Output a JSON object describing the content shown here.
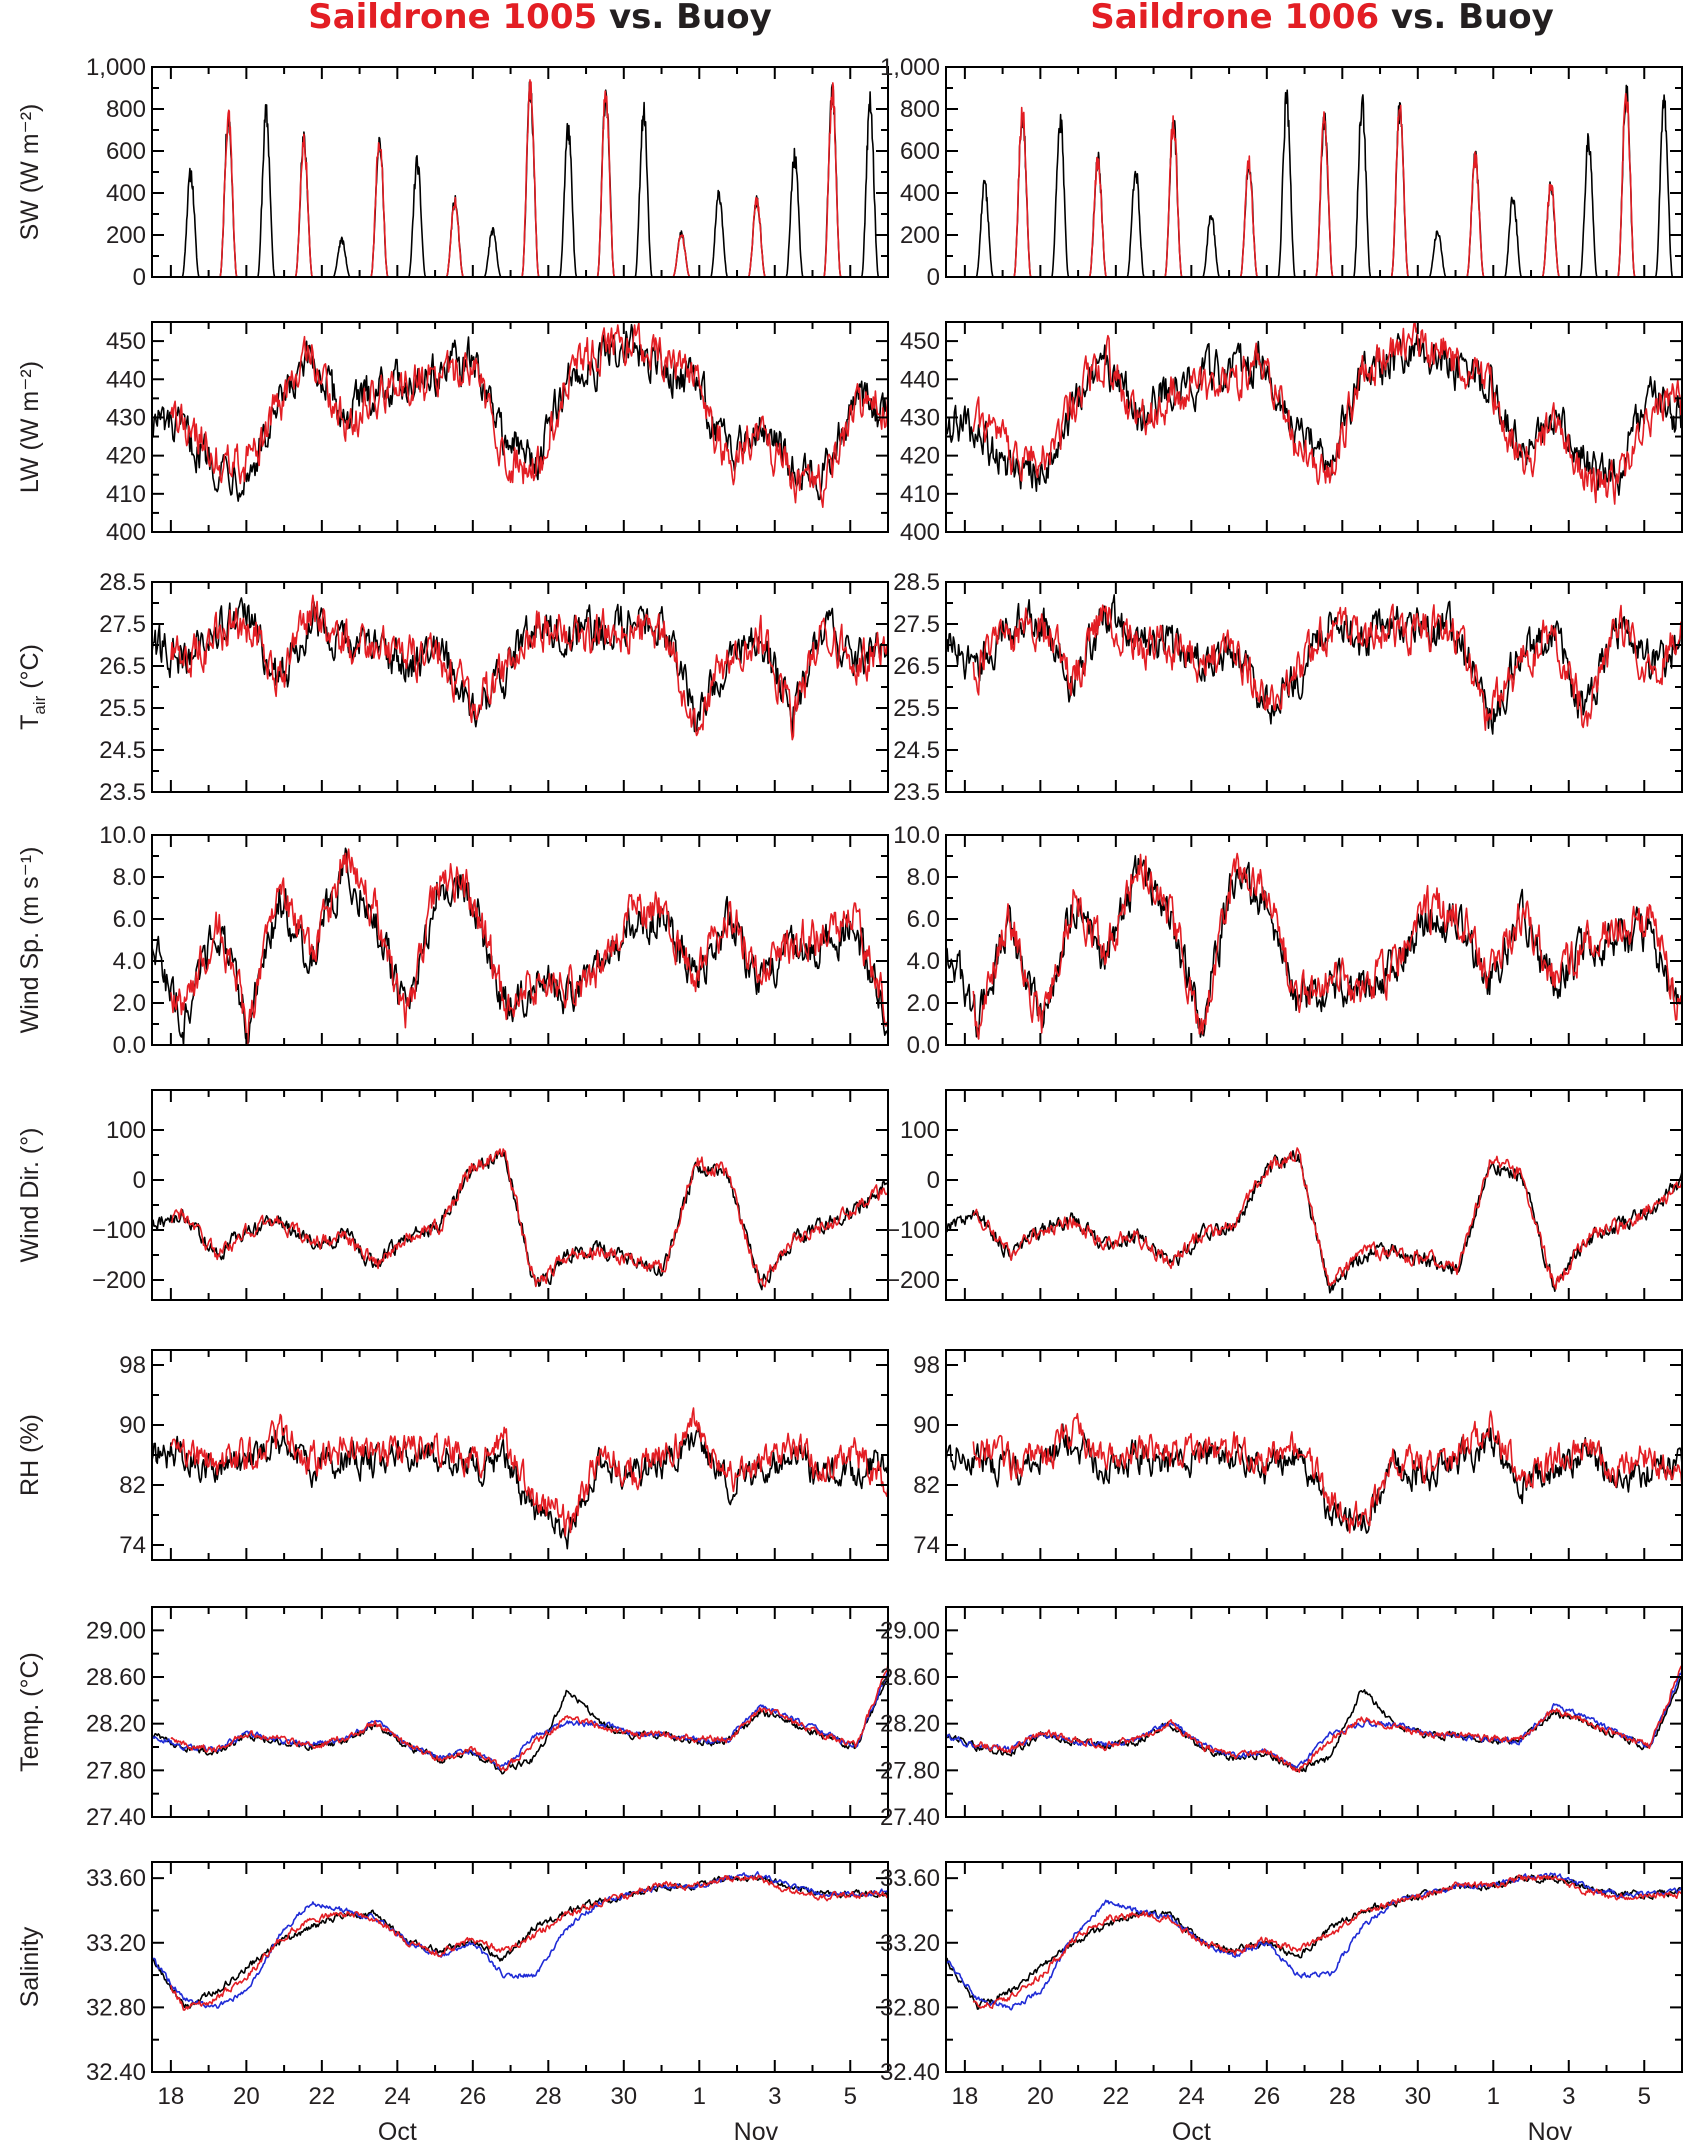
{
  "titles": [
    {
      "platform": "Saildrone 1005",
      "suffix": " vs. Buoy"
    },
    {
      "platform": "Saildrone 1006",
      "suffix": " vs. Buoy"
    }
  ],
  "colors": {
    "buoy": "#000000",
    "saildrone": "#e31e24",
    "blue": "#1f2bd6",
    "title_red": "#e31e24",
    "title_black": "#231f20"
  },
  "x_axis": {
    "day_range": [
      17.5,
      37.0
    ],
    "ticks": [
      {
        "day": 18,
        "label": "18"
      },
      {
        "day": 20,
        "label": "20"
      },
      {
        "day": 22,
        "label": "22"
      },
      {
        "day": 24,
        "label": "24"
      },
      {
        "day": 26,
        "label": "26"
      },
      {
        "day": 28,
        "label": "28"
      },
      {
        "day": 30,
        "label": "30"
      },
      {
        "day": 32,
        "label": "1"
      },
      {
        "day": 34,
        "label": "3"
      },
      {
        "day": 36,
        "label": "5"
      }
    ],
    "month_labels": [
      {
        "day": 24.0,
        "label": "Oct"
      },
      {
        "day": 33.5,
        "label": "Nov"
      }
    ]
  },
  "chart_data": [
    {
      "type": "line",
      "id": "sw",
      "ylabel": "SW (W m⁻²)",
      "ylim": [
        0,
        1000
      ],
      "yticks": [
        {
          "v": 0,
          "l": "0"
        },
        {
          "v": 200,
          "l": "200"
        },
        {
          "v": 400,
          "l": "400"
        },
        {
          "v": 600,
          "l": "600"
        },
        {
          "v": 800,
          "l": "800"
        },
        {
          "v": 1000,
          "l": "1,000"
        }
      ],
      "peaks_sd1005": [
        0,
        560,
        820,
        880,
        700,
        200,
        700,
        620,
        390,
        250,
        960,
        800,
        950,
        900,
        220,
        450,
        390,
        650,
        940,
        930,
        80,
        920
      ],
      "peaks_sd1006": [
        0,
        500,
        840,
        850,
        600,
        580,
        800,
        330,
        580,
        960,
        800,
        950,
        860,
        250,
        610,
        430,
        480,
        740,
        940,
        940,
        100,
        830
      ]
    },
    {
      "type": "line",
      "id": "lw",
      "ylabel": "LW (W m⁻²)",
      "ylim": [
        400,
        455
      ],
      "yticks": [
        {
          "v": 400,
          "l": "400"
        },
        {
          "v": 410,
          "l": "410"
        },
        {
          "v": 420,
          "l": "420"
        },
        {
          "v": 430,
          "l": "430"
        },
        {
          "v": 440,
          "l": "440"
        },
        {
          "v": 450,
          "l": "450"
        }
      ],
      "daily_buoy": [
        430,
        425,
        418,
        415,
        432,
        445,
        430,
        438,
        440,
        442,
        445,
        425,
        418,
        440,
        445,
        448,
        442,
        440,
        420,
        430,
        418,
        415,
        435,
        430
      ],
      "daily_sd": [
        432,
        428,
        420,
        418,
        434,
        446,
        428,
        436,
        438,
        440,
        444,
        420,
        415,
        442,
        447,
        450,
        444,
        438,
        418,
        428,
        414,
        412,
        432,
        434
      ]
    },
    {
      "type": "line",
      "id": "tair",
      "ylabel": "T",
      "ylabel_sub": "air",
      "ylabel_suffix": " (°C)",
      "ylim": [
        23.5,
        28.5
      ],
      "yticks": [
        {
          "v": 23.5,
          "l": "23.5"
        },
        {
          "v": 24.5,
          "l": "24.5"
        },
        {
          "v": 25.5,
          "l": "25.5"
        },
        {
          "v": 26.5,
          "l": "26.5"
        },
        {
          "v": 27.5,
          "l": "27.5"
        },
        {
          "v": 28.5,
          "l": "28.5"
        }
      ],
      "daily_buoy": [
        27.0,
        26.6,
        27.4,
        27.6,
        26.0,
        27.8,
        27.1,
        27.0,
        26.6,
        26.9,
        25.5,
        26.2,
        27.6,
        27.2,
        27.4,
        27.5,
        27.3,
        25.3,
        26.8,
        27.2,
        25.3,
        27.4,
        26.5,
        27.0
      ],
      "daily_sd": [
        27.1,
        26.5,
        27.3,
        27.5,
        26.1,
        27.9,
        27.0,
        26.9,
        26.7,
        26.8,
        25.6,
        26.3,
        27.5,
        27.1,
        27.3,
        27.4,
        27.2,
        25.2,
        26.7,
        27.3,
        25.2,
        27.5,
        26.4,
        27.2
      ]
    },
    {
      "type": "line",
      "id": "wind_speed",
      "ylabel": "Wind Sp. (m s⁻¹)",
      "ylim": [
        0,
        10
      ],
      "yticks": [
        {
          "v": 0,
          "l": "0.0"
        },
        {
          "v": 2,
          "l": "2.0"
        },
        {
          "v": 4,
          "l": "4.0"
        },
        {
          "v": 6,
          "l": "6.0"
        },
        {
          "v": 8,
          "l": "8.0"
        },
        {
          "v": 10,
          "l": "10.0"
        }
      ],
      "daily_buoy": [
        5.0,
        1.0,
        6.0,
        0.8,
        7.0,
        4.0,
        8.5,
        6.0,
        1.0,
        8.0,
        7.0,
        2.0,
        3.0,
        2.5,
        3.5,
        6.0,
        6.0,
        3.0,
        6.0,
        3.0,
        4.5,
        5.0,
        5.5,
        1.0
      ],
      "daily_sd": [
        5.5,
        1.2,
        6.2,
        0.9,
        7.2,
        4.2,
        8.8,
        6.3,
        1.2,
        8.2,
        7.3,
        2.2,
        3.1,
        2.6,
        3.8,
        6.5,
        6.3,
        3.2,
        6.4,
        3.2,
        4.8,
        5.2,
        5.8,
        1.5
      ]
    },
    {
      "type": "line",
      "id": "wind_dir",
      "ylabel": "Wind Dir. (°)",
      "ylim": [
        -240,
        180
      ],
      "yticks": [
        {
          "v": -200,
          "l": "−200"
        },
        {
          "v": -100,
          "l": "−100"
        },
        {
          "v": 0,
          "l": "0"
        },
        {
          "v": 100,
          "l": "100"
        }
      ],
      "daily_buoy": [
        -90,
        -70,
        -150,
        -100,
        -80,
        -130,
        -110,
        -170,
        -110,
        -90,
        20,
        50,
        -220,
        -150,
        -140,
        -160,
        -180,
        30,
        10,
        -210,
        -120,
        -90,
        -60,
        0
      ],
      "daily_sd": [
        -92,
        -72,
        -148,
        -102,
        -82,
        -128,
        -112,
        -168,
        -108,
        -92,
        25,
        52,
        -215,
        -148,
        -142,
        -158,
        -182,
        40,
        12,
        -212,
        -118,
        -92,
        -58,
        -20
      ]
    },
    {
      "type": "line",
      "id": "rh",
      "ylabel": "RH (%)",
      "ylim": [
        72,
        100
      ],
      "yticks": [
        {
          "v": 74,
          "l": "74"
        },
        {
          "v": 82,
          "l": "82"
        },
        {
          "v": 90,
          "l": "90"
        },
        {
          "v": 98,
          "l": "98"
        }
      ],
      "daily_buoy": [
        86,
        86,
        84,
        85,
        88,
        84,
        86,
        85,
        86,
        86,
        84,
        86,
        78,
        76,
        85,
        83,
        85,
        88,
        82,
        84,
        86,
        83,
        84,
        85
      ],
      "daily_sd": [
        87,
        87,
        85,
        86,
        89,
        85,
        87,
        86,
        87,
        87,
        85,
        88,
        80,
        77,
        86,
        84,
        86,
        90,
        83,
        85,
        87,
        84,
        86,
        82
      ]
    },
    {
      "type": "line",
      "id": "temp",
      "ylabel": "Temp. (°C)",
      "ylim": [
        27.4,
        29.2
      ],
      "yticks": [
        {
          "v": 27.4,
          "l": "27.40"
        },
        {
          "v": 27.8,
          "l": "27.80"
        },
        {
          "v": 28.2,
          "l": "28.20"
        },
        {
          "v": 28.6,
          "l": "28.60"
        },
        {
          "v": 29.0,
          "l": "29.00"
        }
      ],
      "daily_buoy": [
        28.1,
        28.0,
        27.95,
        28.1,
        28.05,
        28.0,
        28.05,
        28.2,
        28.0,
        27.9,
        27.95,
        27.8,
        27.9,
        28.5,
        28.2,
        28.1,
        28.1,
        28.05,
        28.05,
        28.3,
        28.2,
        28.1,
        28.0,
        28.6
      ],
      "daily_blue": [
        28.1,
        28.0,
        27.98,
        28.12,
        28.05,
        28.02,
        28.06,
        28.22,
        28.02,
        27.92,
        27.96,
        27.82,
        28.1,
        28.2,
        28.2,
        28.12,
        28.1,
        28.06,
        28.06,
        28.35,
        28.25,
        28.12,
        28.0,
        28.65
      ],
      "daily_sd": [
        28.12,
        28.02,
        27.97,
        28.13,
        28.06,
        28.01,
        28.07,
        28.21,
        28.01,
        27.91,
        27.97,
        27.8,
        28.05,
        28.25,
        28.18,
        28.1,
        28.1,
        28.07,
        28.07,
        28.32,
        28.22,
        28.1,
        28.01,
        28.7
      ]
    },
    {
      "type": "line",
      "id": "salinity",
      "ylabel": "Salinity",
      "ylim": [
        32.4,
        33.7
      ],
      "yticks": [
        {
          "v": 32.4,
          "l": "32.40"
        },
        {
          "v": 32.8,
          "l": "32.80"
        },
        {
          "v": 33.2,
          "l": "33.20"
        },
        {
          "v": 33.6,
          "l": "33.60"
        }
      ],
      "daily_buoy": [
        33.1,
        32.8,
        32.9,
        33.05,
        33.2,
        33.3,
        33.38,
        33.38,
        33.2,
        33.15,
        33.2,
        33.1,
        33.3,
        33.4,
        33.45,
        33.5,
        33.55,
        33.55,
        33.6,
        33.6,
        33.55,
        33.5,
        33.5,
        33.52
      ],
      "daily_blue": [
        33.1,
        32.85,
        32.8,
        32.9,
        33.25,
        33.45,
        33.4,
        33.35,
        33.2,
        33.12,
        33.2,
        33.0,
        33.0,
        33.3,
        33.45,
        33.5,
        33.55,
        33.55,
        33.6,
        33.62,
        33.55,
        33.5,
        33.5,
        33.52
      ],
      "daily_sd": [
        33.1,
        32.8,
        32.85,
        33.0,
        33.22,
        33.35,
        33.38,
        33.35,
        33.2,
        33.14,
        33.22,
        33.15,
        33.25,
        33.38,
        33.45,
        33.5,
        33.56,
        33.55,
        33.6,
        33.6,
        33.52,
        33.48,
        33.5,
        33.5
      ]
    }
  ]
}
